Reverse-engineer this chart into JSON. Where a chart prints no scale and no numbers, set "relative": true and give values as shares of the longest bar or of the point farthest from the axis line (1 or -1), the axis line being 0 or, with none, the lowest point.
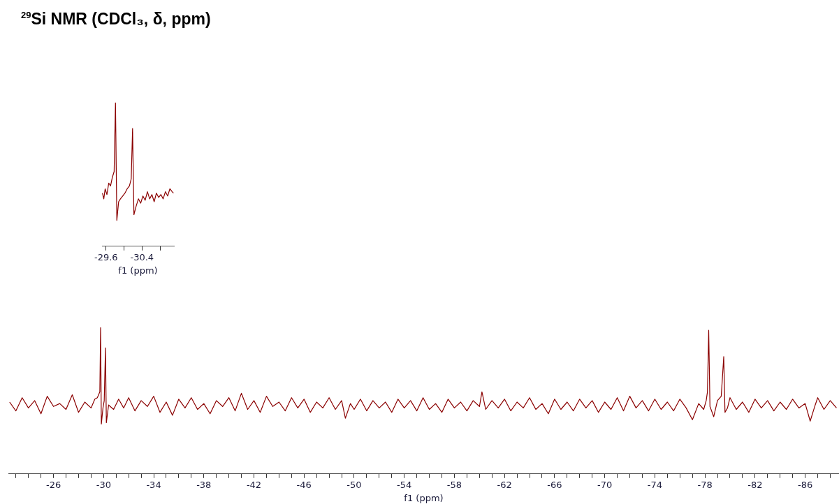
{
  "chart_data": [
    {
      "type": "line",
      "xlabel": "f1 (ppm)",
      "relative": true,
      "tick_labels": "x",
      "xlim": [
        -22.4,
        -88.7
      ],
      "xticks": [
        {
          "value": -23,
          "label": null
        },
        {
          "value": -24,
          "label": null
        },
        {
          "value": -25,
          "label": null
        },
        -26,
        {
          "value": -27,
          "label": null
        },
        {
          "value": -28,
          "label": null
        },
        {
          "value": -29,
          "label": null
        },
        -30,
        {
          "value": -31,
          "label": null
        },
        {
          "value": -32,
          "label": null
        },
        {
          "value": -33,
          "label": null
        },
        -34,
        {
          "value": -35,
          "label": null
        },
        {
          "value": -36,
          "label": null
        },
        {
          "value": -37,
          "label": null
        },
        -38,
        {
          "value": -39,
          "label": null
        },
        {
          "value": -40,
          "label": null
        },
        {
          "value": -41,
          "label": null
        },
        -42,
        {
          "value": -43,
          "label": null
        },
        {
          "value": -44,
          "label": null
        },
        {
          "value": -45,
          "label": null
        },
        -46,
        {
          "value": -47,
          "label": null
        },
        {
          "value": -48,
          "label": null
        },
        {
          "value": -49,
          "label": null
        },
        -50,
        {
          "value": -51,
          "label": null
        },
        {
          "value": -52,
          "label": null
        },
        {
          "value": -53,
          "label": null
        },
        -54,
        {
          "value": -55,
          "label": null
        },
        {
          "value": -56,
          "label": null
        },
        {
          "value": -57,
          "label": null
        },
        -58,
        {
          "value": -59,
          "label": null
        },
        {
          "value": -60,
          "label": null
        },
        {
          "value": -61,
          "label": null
        },
        -62,
        {
          "value": -63,
          "label": null
        },
        {
          "value": -64,
          "label": null
        },
        {
          "value": -65,
          "label": null
        },
        -66,
        {
          "value": -67,
          "label": null
        },
        {
          "value": -68,
          "label": null
        },
        {
          "value": -69,
          "label": null
        },
        -70,
        {
          "value": -71,
          "label": null
        },
        {
          "value": -72,
          "label": null
        },
        {
          "value": -73,
          "label": null
        },
        -74,
        {
          "value": -75,
          "label": null
        },
        {
          "value": -76,
          "label": null
        },
        {
          "value": -77,
          "label": null
        },
        -78,
        {
          "value": -79,
          "label": null
        },
        {
          "value": -80,
          "label": null
        },
        {
          "value": -81,
          "label": null
        },
        -82,
        {
          "value": -83,
          "label": null
        },
        {
          "value": -84,
          "label": null
        },
        {
          "value": -85,
          "label": null
        },
        -86,
        {
          "value": -87,
          "label": null
        },
        {
          "value": -88,
          "label": null
        }
      ],
      "series": [
        {
          "color": "#8b0000",
          "x": [
            -22.5,
            -23,
            -23.5,
            -24,
            -24.5,
            -25,
            -25.5,
            -26,
            -26.5,
            -27,
            -27.5,
            -28,
            -28.5,
            -29,
            -29.3,
            -29.5,
            -29.7,
            -29.76,
            -29.82,
            -29.95,
            -30.05,
            -30.15,
            -30.22,
            -30.4,
            -30.8,
            -31.2,
            -31.6,
            -32,
            -32.5,
            -33,
            -33.5,
            -34,
            -34.5,
            -35,
            -35.5,
            -36,
            -36.5,
            -37,
            -37.5,
            -38,
            -38.5,
            -39,
            -39.5,
            -40,
            -40.5,
            -41,
            -41.5,
            -42,
            -42.5,
            -43,
            -43.5,
            -44,
            -44.5,
            -45,
            -45.5,
            -46,
            -46.5,
            -47,
            -47.5,
            -48,
            -48.5,
            -49,
            -49.3,
            -49.7,
            -50,
            -50.5,
            -51,
            -51.5,
            -52,
            -52.5,
            -53,
            -53.5,
            -54,
            -54.5,
            -55,
            -55.5,
            -56,
            -56.5,
            -57,
            -57.5,
            -58,
            -58.5,
            -59,
            -59.5,
            -60,
            -60.2,
            -60.5,
            -61,
            -61.5,
            -62,
            -62.5,
            -63,
            -63.5,
            -64,
            -64.5,
            -65,
            -65.5,
            -66,
            -66.5,
            -67,
            -67.5,
            -68,
            -68.5,
            -69,
            -69.5,
            -70,
            -70.5,
            -71,
            -71.5,
            -72,
            -72.5,
            -73,
            -73.5,
            -74,
            -74.5,
            -75,
            -75.5,
            -76,
            -76.5,
            -77,
            -77.5,
            -77.9,
            -78.1,
            -78.2,
            -78.3,
            -78.4,
            -78.7,
            -79,
            -79.3,
            -79.5,
            -79.6,
            -79.8,
            -80,
            -80.5,
            -81,
            -81.5,
            -82,
            -82.5,
            -83,
            -83.5,
            -84,
            -84.5,
            -85,
            -85.5,
            -86,
            -86.4,
            -86.8,
            -87,
            -87.5,
            -88,
            -88.5
          ],
          "values": [
            0.49,
            0.43,
            0.52,
            0.45,
            0.5,
            0.41,
            0.53,
            0.46,
            0.48,
            0.44,
            0.54,
            0.42,
            0.49,
            0.45,
            0.51,
            0.52,
            0.56,
            1.0,
            0.34,
            0.45,
            0.5,
            0.86,
            0.35,
            0.47,
            0.44,
            0.51,
            0.45,
            0.52,
            0.43,
            0.5,
            0.46,
            0.53,
            0.42,
            0.49,
            0.4,
            0.51,
            0.45,
            0.52,
            0.44,
            0.48,
            0.41,
            0.5,
            0.46,
            0.52,
            0.43,
            0.55,
            0.44,
            0.5,
            0.42,
            0.53,
            0.46,
            0.49,
            0.43,
            0.52,
            0.45,
            0.51,
            0.42,
            0.49,
            0.45,
            0.52,
            0.44,
            0.5,
            0.38,
            0.48,
            0.44,
            0.51,
            0.43,
            0.5,
            0.45,
            0.49,
            0.42,
            0.51,
            0.45,
            0.5,
            0.43,
            0.52,
            0.44,
            0.48,
            0.42,
            0.51,
            0.45,
            0.49,
            0.43,
            0.5,
            0.46,
            0.56,
            0.44,
            0.5,
            0.45,
            0.51,
            0.43,
            0.49,
            0.45,
            0.52,
            0.44,
            0.48,
            0.41,
            0.51,
            0.44,
            0.49,
            0.43,
            0.51,
            0.45,
            0.5,
            0.42,
            0.49,
            0.44,
            0.52,
            0.43,
            0.53,
            0.45,
            0.5,
            0.43,
            0.51,
            0.44,
            0.49,
            0.43,
            0.51,
            0.45,
            0.37,
            0.48,
            0.44,
            0.5,
            0.56,
            0.98,
            0.46,
            0.39,
            0.5,
            0.53,
            0.8,
            0.42,
            0.45,
            0.52,
            0.44,
            0.49,
            0.42,
            0.51,
            0.45,
            0.5,
            0.43,
            0.49,
            0.44,
            0.51,
            0.45,
            0.48,
            0.36,
            0.47,
            0.52,
            0.44,
            0.5,
            0.45
          ]
        }
      ]
    },
    {
      "type": "line",
      "title": "$^{29}$Si NMR (CDCl₃, δ, ppm)",
      "xlabel": "f1 (ppm)",
      "relative": true,
      "tick_labels": "x",
      "xlim": [
        -29.51,
        -31.11
      ],
      "xticks": [
        -29.6,
        {
          "value": -30.0,
          "label": null
        },
        -30.4,
        {
          "value": -30.8,
          "label": null
        }
      ],
      "series": [
        {
          "color": "#8b0000",
          "x": [
            -29.52,
            -29.55,
            -29.58,
            -29.62,
            -29.66,
            -29.7,
            -29.74,
            -29.78,
            -29.81,
            -29.84,
            -29.88,
            -29.92,
            -29.97,
            -30.02,
            -30.07,
            -30.12,
            -30.16,
            -30.19,
            -30.22,
            -30.27,
            -30.32,
            -30.37,
            -30.42,
            -30.47,
            -30.52,
            -30.57,
            -30.62,
            -30.67,
            -30.72,
            -30.77,
            -30.82,
            -30.87,
            -30.92,
            -30.97,
            -31.02,
            -31.07,
            -31.1
          ],
          "values": [
            0.37,
            0.33,
            0.4,
            0.36,
            0.44,
            0.42,
            0.48,
            0.52,
            1.0,
            0.18,
            0.31,
            0.33,
            0.35,
            0.37,
            0.4,
            0.42,
            0.47,
            0.82,
            0.22,
            0.28,
            0.33,
            0.3,
            0.35,
            0.32,
            0.38,
            0.33,
            0.36,
            0.31,
            0.37,
            0.34,
            0.36,
            0.33,
            0.38,
            0.35,
            0.4,
            0.38,
            0.37
          ]
        }
      ]
    }
  ]
}
